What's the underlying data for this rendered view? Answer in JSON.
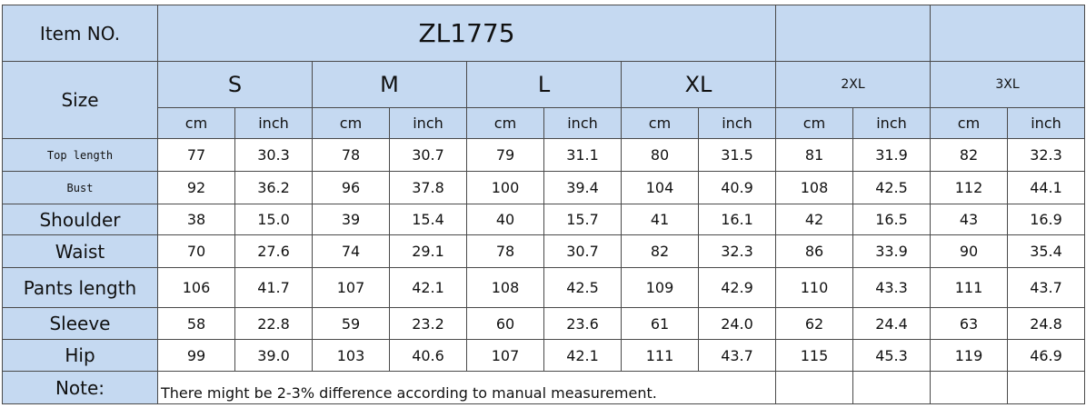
{
  "header": {
    "item_label": "Item NO.",
    "item_value": "ZL1775",
    "size_label": "Size",
    "sizes": [
      "S",
      "M",
      "L",
      "XL",
      "2XL",
      "3XL"
    ],
    "units": [
      "cm",
      "inch"
    ]
  },
  "table": {
    "rows": [
      {
        "label": "Top length",
        "values": [
          "77",
          "30.3",
          "78",
          "30.7",
          "79",
          "31.1",
          "80",
          "31.5",
          "81",
          "31.9",
          "82",
          "32.3"
        ]
      },
      {
        "label": "Bust",
        "values": [
          "92",
          "36.2",
          "96",
          "37.8",
          "100",
          "39.4",
          "104",
          "40.9",
          "108",
          "42.5",
          "112",
          "44.1"
        ]
      },
      {
        "label": "Shoulder",
        "values": [
          "38",
          "15.0",
          "39",
          "15.4",
          "40",
          "15.7",
          "41",
          "16.1",
          "42",
          "16.5",
          "43",
          "16.9"
        ]
      },
      {
        "label": "Waist",
        "values": [
          "70",
          "27.6",
          "74",
          "29.1",
          "78",
          "30.7",
          "82",
          "32.3",
          "86",
          "33.9",
          "90",
          "35.4"
        ]
      },
      {
        "label": "Pants length",
        "values": [
          "106",
          "41.7",
          "107",
          "42.1",
          "108",
          "42.5",
          "109",
          "42.9",
          "110",
          "43.3",
          "111",
          "43.7"
        ]
      },
      {
        "label": "Sleeve",
        "values": [
          "58",
          "22.8",
          "59",
          "23.2",
          "60",
          "23.6",
          "61",
          "24.0",
          "62",
          "24.4",
          "63",
          "24.8"
        ]
      },
      {
        "label": "Hip",
        "values": [
          "99",
          "39.0",
          "103",
          "40.6",
          "107",
          "42.1",
          "111",
          "43.7",
          "115",
          "45.3",
          "119",
          "46.9"
        ]
      }
    ]
  },
  "note": {
    "label": "Note:",
    "text": "There might be 2-3% difference according to manual measurement."
  }
}
